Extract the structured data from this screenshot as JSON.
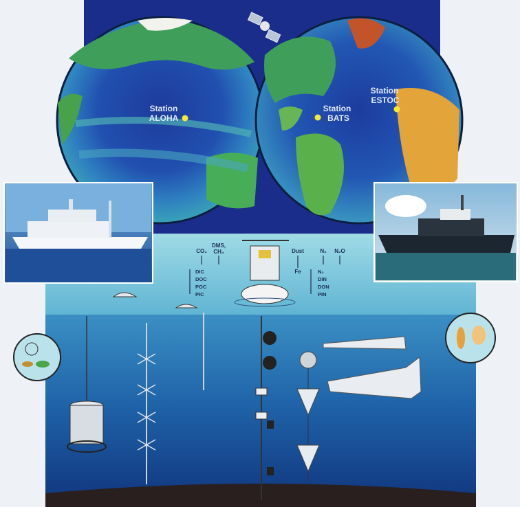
{
  "stations": {
    "aloha": {
      "line1": "Station",
      "line2": "ALOHA"
    },
    "bats": {
      "line1": "Station",
      "line2": "BATS"
    },
    "estoc": {
      "line1": "Station",
      "line2": "ESTOC"
    }
  },
  "flux_labels": {
    "co2": "CO₂",
    "dms": "DMS,",
    "ch4": "CH₄",
    "dust": "Dust",
    "fe": "Fe",
    "n2": "N₂",
    "n2o": "N₂O"
  },
  "carbon_pools": [
    "DIC",
    "DOC",
    "POC",
    "PIC"
  ],
  "nitrogen_pools": [
    "N₂",
    "DIN",
    "DON",
    "PIN"
  ],
  "colors": {
    "sky": "#1b2d8a",
    "ocean_deep": "#123d86",
    "ocean_surface": "#8fd1df",
    "station_dot": "#f6e836"
  }
}
